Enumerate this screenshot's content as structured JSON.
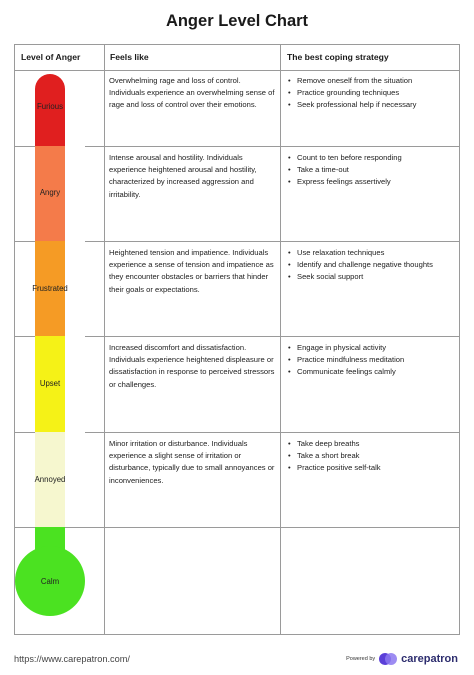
{
  "title": "Anger Level Chart",
  "headers": {
    "level": "Level of Anger",
    "feels": "Feels like",
    "coping": "The best coping strategy"
  },
  "colors": {
    "furious": "#e01f1f",
    "angry": "#f47b4a",
    "frustrated": "#f59b25",
    "upset": "#f5f217",
    "annoyed": "#f6f7cf",
    "calm": "#4be221",
    "brand": "#6b4fe0"
  },
  "rows": [
    {
      "level": "Furious",
      "feels": "Overwhelming rage and loss of control. Individuals experience an overwhelming sense of rage and loss of control over their emotions.",
      "coping": [
        "Remove oneself from the situation",
        "Practice grounding techniques",
        "Seek professional help if necessary"
      ]
    },
    {
      "level": "Angry",
      "feels": "Intense arousal and hostility. Individuals experience heightened arousal and hostility, characterized by increased aggression and irritability.",
      "coping": [
        "Count to ten before responding",
        "Take a time-out",
        "Express feelings assertively"
      ]
    },
    {
      "level": "Frustrated",
      "feels": "Heightened tension and impatience. Individuals experience a sense of tension and impatience as they encounter obstacles or barriers that hinder their goals or expectations.",
      "coping": [
        "Use relaxation techniques",
        "Identify and challenge negative thoughts",
        "Seek social support"
      ]
    },
    {
      "level": "Upset",
      "feels": "Increased discomfort and dissatisfaction. Individuals experience heightened displeasure or dissatisfaction in response to perceived stressors or challenges.",
      "coping": [
        "Engage in physical activity",
        "Practice mindfulness meditation",
        "Communicate feelings calmly"
      ]
    },
    {
      "level": "Annoyed",
      "feels": "Minor irritation or disturbance. Individuals experience a slight sense of irritation or disturbance, typically due to small annoyances or inconveniences.",
      "coping": [
        "Take deep breaths",
        "Take a short break",
        "Practice positive self-talk"
      ]
    }
  ],
  "calm_label": "Calm",
  "footer": {
    "link": "https://www.carepatron.com/",
    "powered_by": "Powered by",
    "brand": "carepatron"
  }
}
